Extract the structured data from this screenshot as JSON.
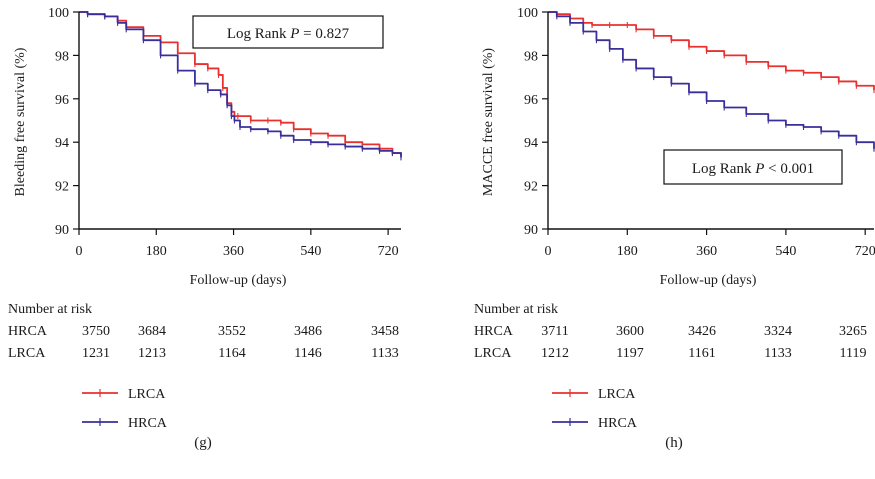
{
  "chart_data": [
    {
      "type": "line",
      "panel_label": "(g)",
      "ylabel": "Bleeding free survival (%)",
      "xlabel": "Follow-up (days)",
      "xticks": [
        0,
        180,
        360,
        540,
        720
      ],
      "yticks": [
        90,
        92,
        94,
        96,
        98,
        100
      ],
      "xlim": [
        0,
        750
      ],
      "ylim": [
        90,
        100
      ],
      "annotation": {
        "prefix": "Log Rank ",
        "p_symbol": "P",
        "suffix": " = 0.827"
      },
      "risk_table": {
        "title": "Number at risk",
        "rows": [
          {
            "group": "HRCA",
            "values": [
              "3750",
              "3684",
              "3552",
              "3486",
              "3458"
            ]
          },
          {
            "group": "LRCA",
            "values": [
              "1231",
              "1213",
              "1164",
              "1146",
              "1133"
            ]
          }
        ]
      },
      "legend": [
        {
          "name": "LRCA",
          "color": "#e8312f"
        },
        {
          "name": "HRCA",
          "color": "#3a2f9a"
        }
      ],
      "series": [
        {
          "name": "LRCA",
          "color": "#e8312f",
          "x": [
            0,
            20,
            60,
            90,
            110,
            150,
            190,
            230,
            270,
            300,
            325,
            335,
            345,
            355,
            362,
            370,
            400,
            440,
            470,
            500,
            540,
            580,
            620,
            660,
            700,
            730,
            750
          ],
          "y": [
            100,
            99.9,
            99.8,
            99.6,
            99.3,
            98.9,
            98.6,
            98.1,
            97.6,
            97.4,
            97.1,
            96.5,
            95.8,
            95.4,
            95.2,
            95.2,
            95.0,
            95.0,
            94.9,
            94.6,
            94.4,
            94.3,
            94.0,
            93.9,
            93.7,
            93.5,
            93.4
          ]
        },
        {
          "name": "HRCA",
          "color": "#3a2f9a",
          "x": [
            0,
            20,
            60,
            90,
            110,
            150,
            190,
            230,
            270,
            300,
            330,
            345,
            355,
            362,
            375,
            400,
            440,
            470,
            500,
            540,
            580,
            620,
            660,
            700,
            730,
            750
          ],
          "y": [
            100,
            99.9,
            99.8,
            99.5,
            99.2,
            98.7,
            98.0,
            97.3,
            96.7,
            96.4,
            96.2,
            95.7,
            95.2,
            95.0,
            94.7,
            94.6,
            94.5,
            94.3,
            94.1,
            94.0,
            93.9,
            93.8,
            93.7,
            93.6,
            93.5,
            93.3
          ]
        }
      ]
    },
    {
      "type": "line",
      "panel_label": "(h)",
      "ylabel": "MACCE free survival (%)",
      "xlabel": "Follow-up (days)",
      "xticks": [
        0,
        180,
        360,
        540,
        720
      ],
      "yticks": [
        90,
        92,
        94,
        96,
        98,
        100
      ],
      "xlim": [
        0,
        740
      ],
      "ylim": [
        90,
        100
      ],
      "annotation": {
        "prefix": "Log Rank ",
        "p_symbol": "P",
        "suffix": " < 0.001"
      },
      "risk_table": {
        "title": "Number at risk",
        "rows": [
          {
            "group": "HRCA",
            "values": [
              "3711",
              "3600",
              "3426",
              "3324",
              "3265"
            ]
          },
          {
            "group": "LRCA",
            "values": [
              "1212",
              "1197",
              "1161",
              "1133",
              "1119"
            ]
          }
        ]
      },
      "legend": [
        {
          "name": "LRCA",
          "color": "#e8312f"
        },
        {
          "name": "HRCA",
          "color": "#3a2f9a"
        }
      ],
      "series": [
        {
          "name": "LRCA",
          "color": "#e8312f",
          "x": [
            0,
            20,
            50,
            80,
            100,
            140,
            180,
            200,
            240,
            280,
            320,
            360,
            400,
            450,
            500,
            540,
            580,
            620,
            660,
            700,
            740
          ],
          "y": [
            100,
            99.9,
            99.7,
            99.5,
            99.4,
            99.4,
            99.4,
            99.2,
            98.9,
            98.7,
            98.4,
            98.2,
            98.0,
            97.7,
            97.5,
            97.3,
            97.2,
            97.0,
            96.8,
            96.6,
            96.4
          ]
        },
        {
          "name": "HRCA",
          "color": "#3a2f9a",
          "x": [
            0,
            20,
            50,
            80,
            110,
            140,
            170,
            200,
            240,
            280,
            320,
            360,
            400,
            450,
            500,
            540,
            580,
            620,
            660,
            700,
            740
          ],
          "y": [
            100,
            99.8,
            99.5,
            99.1,
            98.7,
            98.3,
            97.8,
            97.4,
            97.0,
            96.7,
            96.3,
            95.9,
            95.6,
            95.3,
            95.0,
            94.8,
            94.7,
            94.5,
            94.3,
            94.0,
            93.7
          ]
        }
      ]
    }
  ]
}
